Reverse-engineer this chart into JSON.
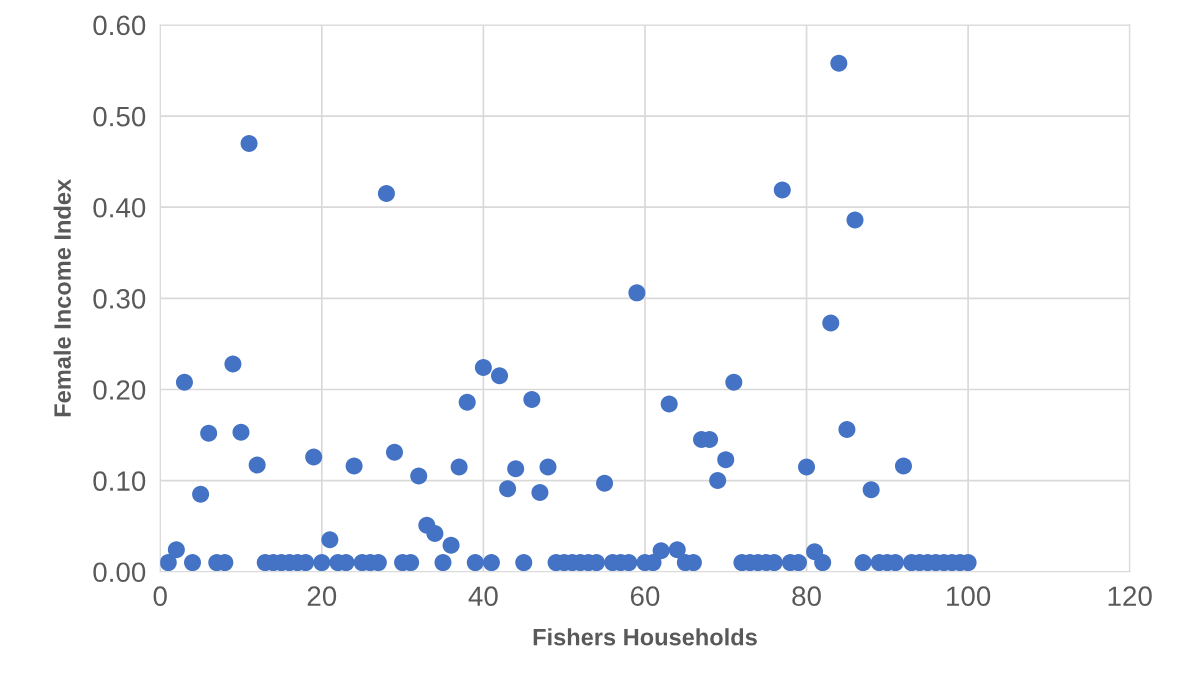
{
  "chart_data": {
    "type": "scatter",
    "xlabel": "Fishers Households",
    "ylabel": "Female Income Index",
    "x": [
      1,
      2,
      3,
      4,
      5,
      6,
      7,
      8,
      9,
      10,
      11,
      12,
      13,
      14,
      15,
      16,
      17,
      18,
      19,
      20,
      21,
      22,
      23,
      24,
      25,
      26,
      27,
      28,
      29,
      30,
      31,
      32,
      33,
      34,
      35,
      36,
      37,
      38,
      39,
      40,
      41,
      42,
      43,
      44,
      45,
      46,
      47,
      48,
      49,
      50,
      51,
      52,
      53,
      54,
      55,
      56,
      57,
      58,
      59,
      60,
      61,
      62,
      63,
      64,
      65,
      66,
      67,
      68,
      69,
      70,
      71,
      72,
      73,
      74,
      75,
      76,
      77,
      78,
      79,
      80,
      81,
      82,
      83,
      84,
      85,
      86,
      87,
      88,
      89,
      90,
      91,
      92,
      93,
      94,
      95,
      96,
      97,
      98,
      99,
      100
    ],
    "series": [
      {
        "color": "#4472c4",
        "values": [
          0.01,
          0.024,
          0.208,
          0.01,
          0.085,
          0.152,
          0.01,
          0.01,
          0.228,
          0.153,
          0.47,
          0.117,
          0.01,
          0.01,
          0.01,
          0.01,
          0.01,
          0.01,
          0.126,
          0.01,
          0.035,
          0.01,
          0.01,
          0.116,
          0.01,
          0.01,
          0.01,
          0.415,
          0.131,
          0.01,
          0.01,
          0.105,
          0.051,
          0.042,
          0.01,
          0.029,
          0.115,
          0.186,
          0.01,
          0.224,
          0.01,
          0.215,
          0.091,
          0.113,
          0.01,
          0.189,
          0.087,
          0.115,
          0.01,
          0.01,
          0.01,
          0.01,
          0.01,
          0.01,
          0.097,
          0.01,
          0.01,
          0.01,
          0.306,
          0.01,
          0.01,
          0.023,
          0.184,
          0.024,
          0.01,
          0.01,
          0.145,
          0.145,
          0.1,
          0.123,
          0.208,
          0.01,
          0.01,
          0.01,
          0.01,
          0.01,
          0.419,
          0.01,
          0.01,
          0.115,
          0.022,
          0.01,
          0.273,
          0.558,
          0.156,
          0.386,
          0.01,
          0.09,
          0.01,
          0.01,
          0.01,
          0.116,
          0.01,
          0.01,
          0.01,
          0.01,
          0.01,
          0.01,
          0.01,
          0.01
        ]
      }
    ],
    "xlim": [
      0,
      120
    ],
    "xticks": [
      0,
      20,
      40,
      60,
      80,
      100,
      120
    ],
    "ylim": [
      0,
      0.6
    ],
    "yticks": [
      {
        "value": 0,
        "label": "0.00"
      },
      {
        "value": 0.1,
        "label": "0.10"
      },
      {
        "value": 0.2,
        "label": "0.20"
      },
      {
        "value": 0.3,
        "label": "0.30"
      },
      {
        "value": 0.4,
        "label": "0.40"
      },
      {
        "value": 0.5,
        "label": "0.50"
      },
      {
        "value": 0.6,
        "label": "0.60"
      }
    ],
    "grid": true,
    "marker": "circle"
  }
}
